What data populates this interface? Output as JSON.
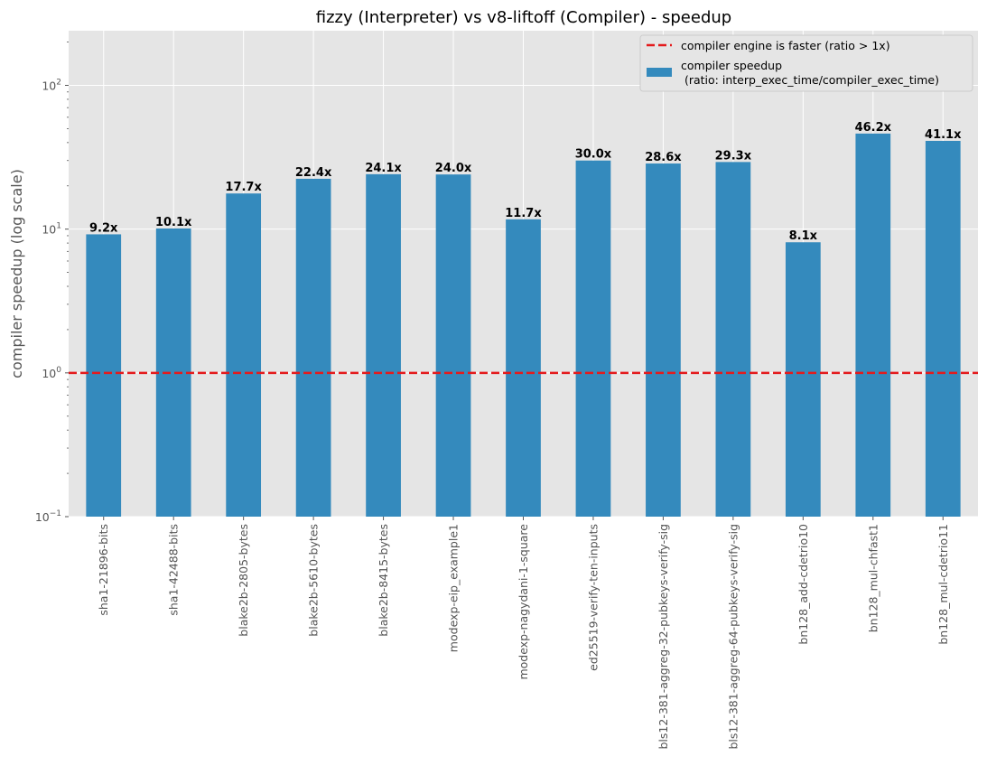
{
  "chart_data": {
    "type": "bar",
    "title": "fizzy (Interpreter) vs v8-liftoff (Compiler) - speedup",
    "xlabel": "",
    "ylabel": "compiler speedup (log scale)",
    "y_scale": "log",
    "ylim": [
      0.1,
      240
    ],
    "y_ticks": [
      "10",
      "10",
      "10",
      "10"
    ],
    "y_tick_exponents": [
      "−1",
      "0",
      "1",
      "2"
    ],
    "y_tick_values": [
      0.1,
      1,
      10,
      100
    ],
    "grid": true,
    "legend_position": "top-right",
    "colors": {
      "bar": "#348abd",
      "reference": "#e41a1c",
      "background": "#e5e5e5",
      "grid": "#ffffff"
    },
    "categories": [
      "sha1-21896-bits",
      "sha1-42488-bits",
      "blake2b-2805-bytes",
      "blake2b-5610-bytes",
      "blake2b-8415-bytes",
      "modexp-eip_example1",
      "modexp-nagydani-1-square",
      "ed25519-verify-ten-inputs",
      "bls12-381-aggreg-32-pubkeys-verify-sig",
      "bls12-381-aggreg-64-pubkeys-verify-sig",
      "bn128_add-cdetrio10",
      "bn128_mul-chfast1",
      "bn128_mul-cdetrio11"
    ],
    "series": [
      {
        "name": "compiler speedup\n (ratio: interp_exec_time/compiler_exec_time)",
        "values": [
          9.2,
          10.1,
          17.7,
          22.4,
          24.1,
          24.0,
          11.7,
          30.0,
          28.6,
          29.3,
          8.1,
          46.2,
          41.1
        ],
        "labels": [
          "9.2x",
          "10.1x",
          "17.7x",
          "22.4x",
          "24.1x",
          "24.0x",
          "11.7x",
          "30.0x",
          "28.6x",
          "29.3x",
          "8.1x",
          "46.2x",
          "41.1x"
        ]
      }
    ],
    "reference_line": {
      "name": "compiler engine is faster (ratio > 1x)",
      "y": 1
    }
  }
}
